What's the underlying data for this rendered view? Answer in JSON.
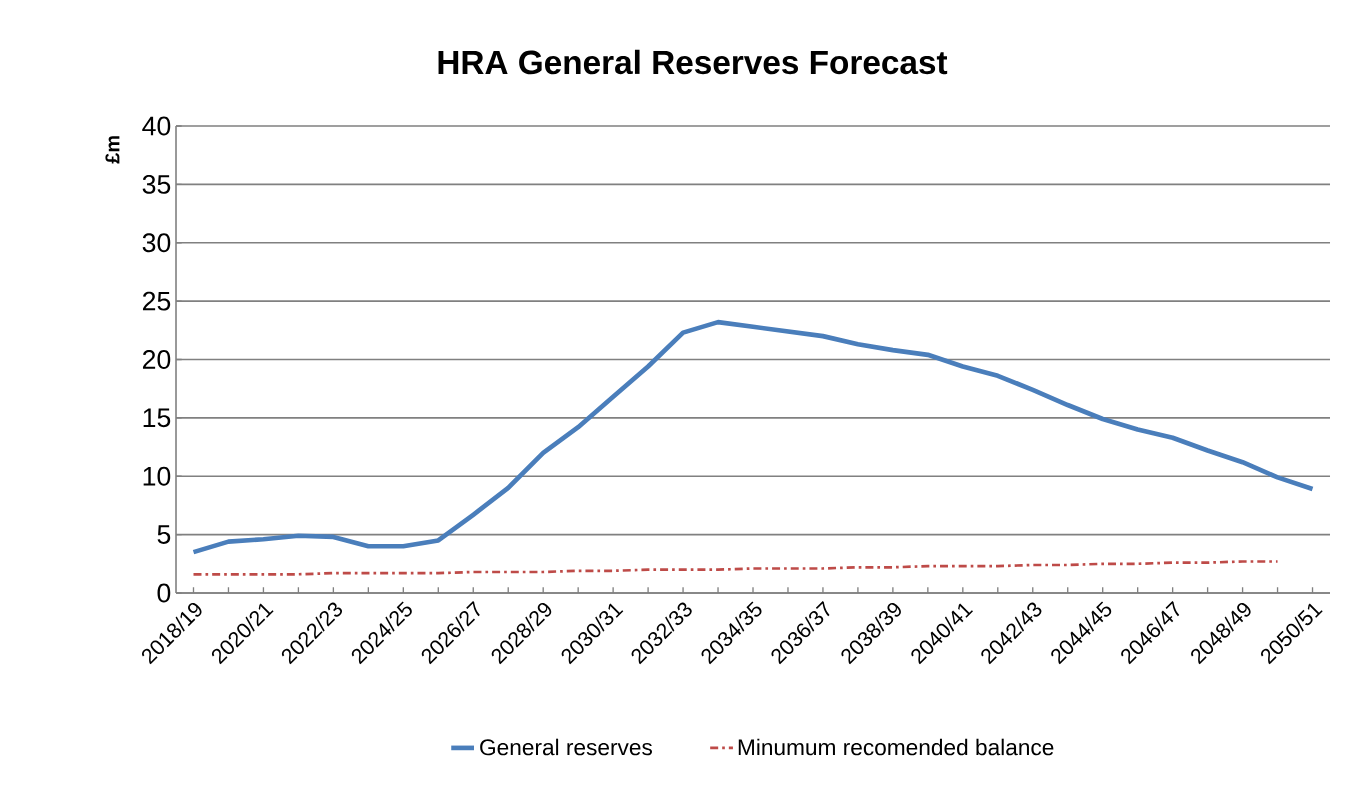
{
  "chart_data": {
    "type": "line",
    "title": "HRA General Reserves Forecast",
    "ylabel": "£m",
    "categories": [
      "2018/19",
      null,
      "2020/21",
      null,
      "2022/23",
      null,
      "2024/25",
      null,
      "2026/27",
      null,
      "2028/29",
      null,
      "2030/31",
      null,
      "2032/33",
      null,
      "2034/35",
      null,
      "2036/37",
      null,
      "2038/39",
      null,
      "2040/41",
      null,
      "2042/43",
      null,
      "2044/45",
      null,
      "2046/47",
      null,
      "2048/49",
      null,
      "2050/51"
    ],
    "series": [
      {
        "name": "General reserves",
        "color": "#4a7ebb",
        "line_style": "solid",
        "values": [
          3.5,
          4.4,
          4.6,
          4.9,
          4.8,
          4.0,
          4.0,
          4.5,
          6.7,
          9.0,
          12.0,
          14.2,
          16.8,
          19.4,
          22.3,
          23.2,
          22.8,
          22.4,
          22.0,
          21.3,
          20.8,
          20.4,
          19.4,
          18.6,
          17.4,
          16.1,
          14.9,
          14.0,
          13.3,
          12.2,
          11.2,
          9.9,
          8.9
        ]
      },
      {
        "name": "Minumum recomended balance",
        "color": "#be4b48",
        "line_style": "dashdot",
        "values": [
          1.6,
          1.6,
          1.6,
          1.6,
          1.7,
          1.7,
          1.7,
          1.7,
          1.8,
          1.8,
          1.8,
          1.9,
          1.9,
          2.0,
          2.0,
          2.0,
          2.1,
          2.1,
          2.1,
          2.2,
          2.2,
          2.3,
          2.3,
          2.3,
          2.4,
          2.4,
          2.5,
          2.5,
          2.6,
          2.6,
          2.7,
          2.7,
          null
        ]
      }
    ],
    "ylim": [
      0,
      40
    ],
    "yticks": [
      0,
      5,
      10,
      15,
      20,
      25,
      30,
      35,
      40
    ],
    "grid": "y",
    "legend": "bottom",
    "marker": "none"
  }
}
